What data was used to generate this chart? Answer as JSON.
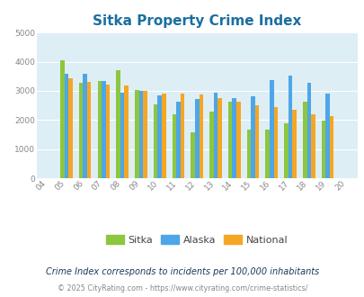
{
  "title": "Sitka Property Crime Index",
  "years": [
    "04",
    "05",
    "06",
    "07",
    "08",
    "09",
    "10",
    "11",
    "12",
    "13",
    "14",
    "15",
    "16",
    "17",
    "18",
    "19",
    "20"
  ],
  "sitka": [
    null,
    4050,
    3280,
    3330,
    3720,
    3020,
    2540,
    2210,
    1570,
    2290,
    2640,
    1670,
    1670,
    1890,
    2620,
    1980,
    null
  ],
  "alaska": [
    null,
    3590,
    3590,
    3340,
    2940,
    3010,
    2850,
    2620,
    2720,
    2930,
    2740,
    2820,
    3360,
    3530,
    3290,
    2920,
    null
  ],
  "national": [
    null,
    3430,
    3320,
    3230,
    3200,
    3010,
    2910,
    2920,
    2870,
    2750,
    2620,
    2490,
    2450,
    2360,
    2200,
    2120,
    null
  ],
  "sitka_color": "#8dc63f",
  "alaska_color": "#4da6e8",
  "national_color": "#f5a623",
  "bg_color": "#ddeef5",
  "ylim": [
    0,
    5000
  ],
  "title_fontsize": 11,
  "note": "Crime Index corresponds to incidents per 100,000 inhabitants",
  "copyright": "© 2025 CityRating.com - https://www.cityrating.com/crime-statistics/"
}
